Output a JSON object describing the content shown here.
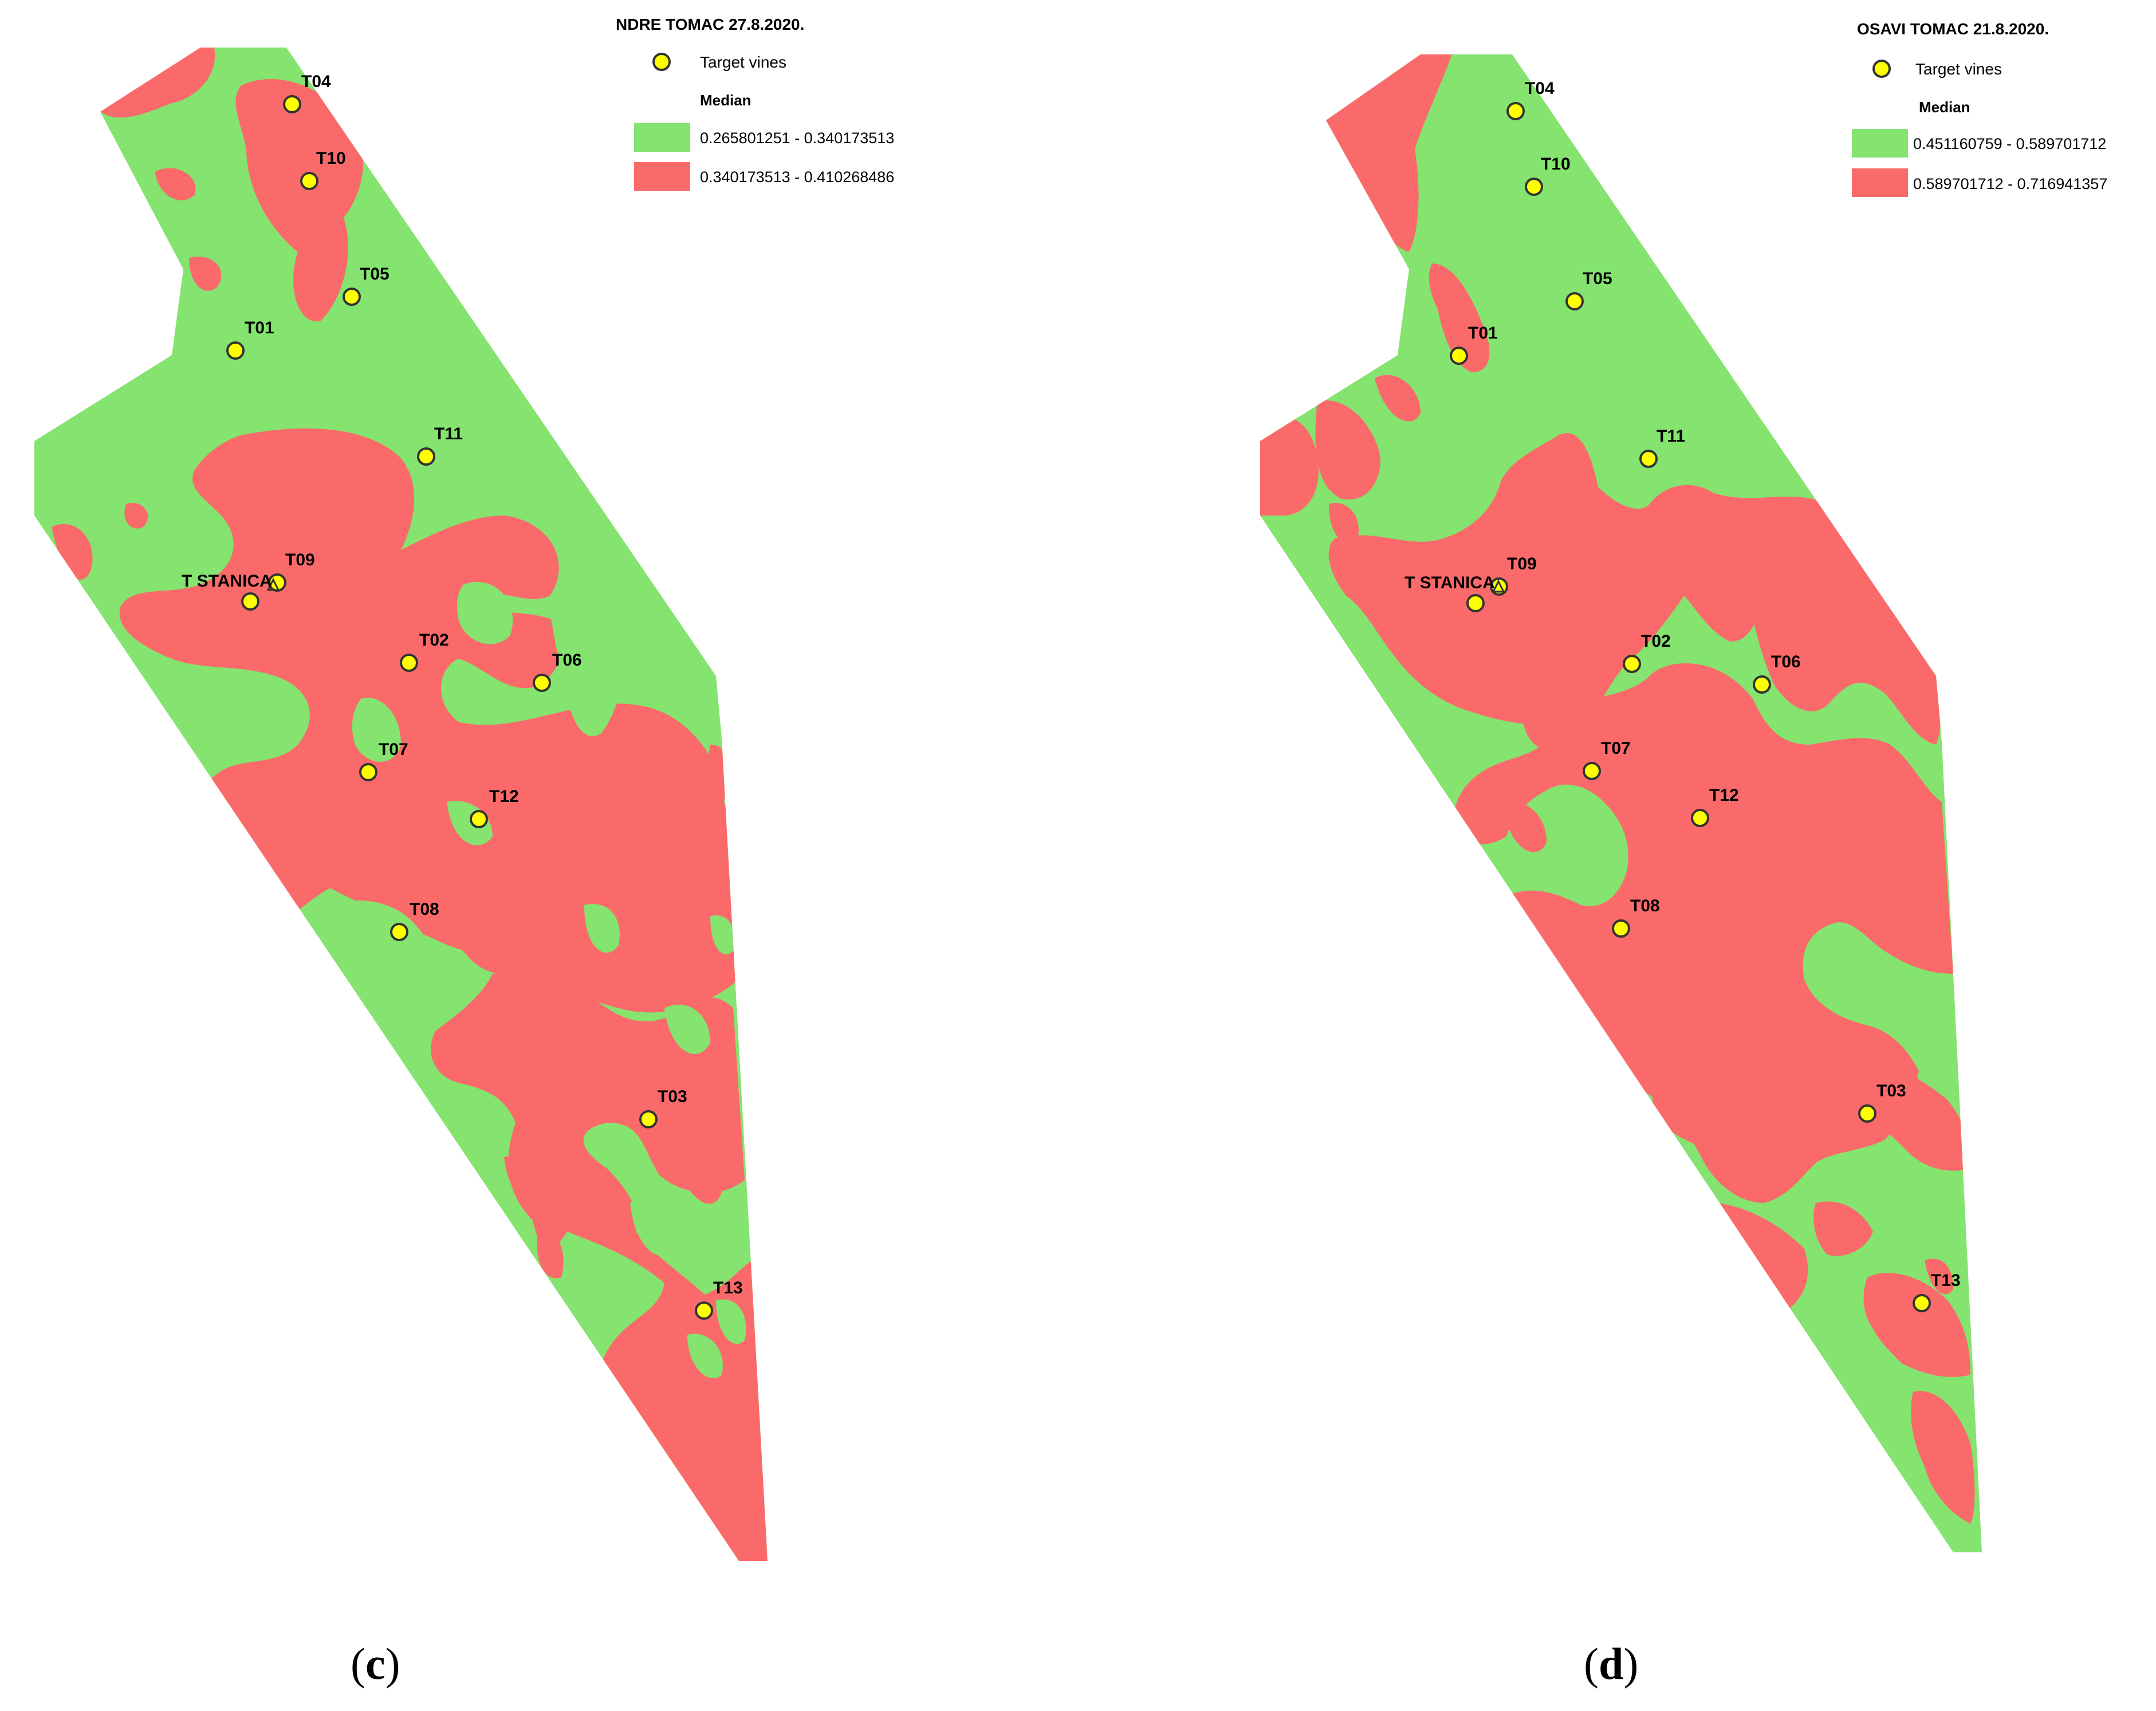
{
  "colors": {
    "green": "#85e36f",
    "red": "#fb6a6a",
    "marker_fill": "#ffff00",
    "marker_stroke": "#333333"
  },
  "panel_c": {
    "legend_title": "NDRE TOMAC 27.8.2020.",
    "marker_label": "Target vines",
    "median_heading": "Median",
    "class_low": "0.265801251 - 0.340173513",
    "class_high": "0.340173513 - 0.410268486",
    "caption_open": "(",
    "caption_letter": "c",
    "caption_close": ")",
    "sites": [
      "T04",
      "T10",
      "T05",
      "T01",
      "T11",
      "T09",
      "T STANICA",
      "T02",
      "T06",
      "T07",
      "T12",
      "T08",
      "T03",
      "T13"
    ]
  },
  "panel_d": {
    "legend_title": "OSAVI TOMAC 21.8.2020.",
    "marker_label": "Target vines",
    "median_heading": "Median",
    "class_low": "0.451160759 - 0.589701712",
    "class_high": "0.589701712 - 0.716941357",
    "caption_open": "(",
    "caption_letter": "d",
    "caption_close": ")",
    "sites": [
      "T04",
      "T10",
      "T05",
      "T01",
      "T11",
      "T09",
      "T STANICA",
      "T02",
      "T06",
      "T07",
      "T12",
      "T08",
      "T03",
      "T13"
    ]
  }
}
